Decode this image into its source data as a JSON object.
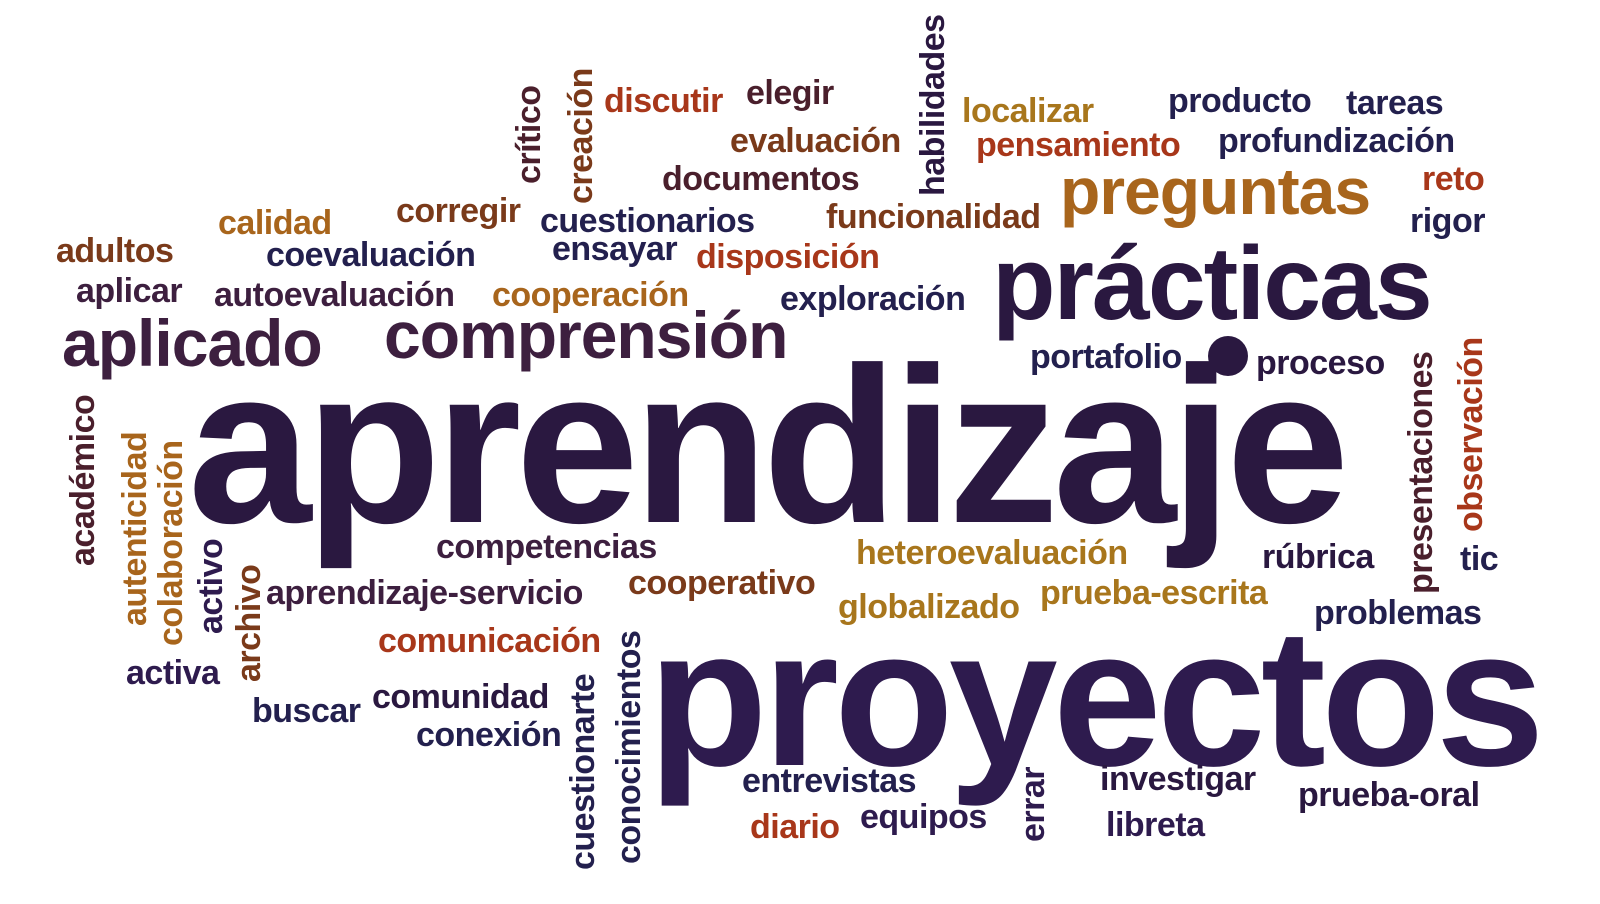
{
  "colors": {
    "dark_purple": "#2a1840",
    "deep_purple": "#2e1b4e",
    "navy": "#23204e",
    "maroon": "#4a1f2c",
    "plum": "#3d1f3f",
    "rust": "#a8371a",
    "brown": "#7a3a1a",
    "amber": "#a8651c",
    "gold": "#a8761c"
  },
  "words": {
    "aprendizaje": "aprendizaje",
    "proyectos": "proyectos",
    "practicas": "prácticas",
    "preguntas": "preguntas",
    "comprension": "comprensión",
    "aplicado": "aplicado",
    "discutir": "discutir",
    "elegir": "elegir",
    "localizar": "localizar",
    "producto": "producto",
    "tareas": "tareas",
    "evaluacion": "evaluación",
    "pensamiento": "pensamiento",
    "profundizacion": "profundización",
    "documentos": "documentos",
    "reto": "reto",
    "calidad": "calidad",
    "corregir": "corregir",
    "cuestionarios": "cuestionarios",
    "funcionalidad": "funcionalidad",
    "rigor": "rigor",
    "adultos": "adultos",
    "coevaluacion": "coevaluación",
    "ensayar": "ensayar",
    "disposicion": "disposición",
    "aplicar": "aplicar",
    "autoevaluacion": "autoevaluación",
    "cooperacion": "cooperación",
    "exploracion": "exploración",
    "portafolio": "portafolio",
    "proceso": "proceso",
    "competencias": "competencias",
    "heteroevaluacion": "heteroevaluación",
    "rubrica": "rúbrica",
    "tic": "tic",
    "aprendizaje_servicio": "aprendizaje-servicio",
    "cooperativo": "cooperativo",
    "globalizado": "globalizado",
    "prueba_escrita": "prueba-escrita",
    "problemas": "problemas",
    "comunicacion": "comunicación",
    "activa": "activa",
    "buscar": "buscar",
    "comunidad": "comunidad",
    "conexion": "conexión",
    "entrevistas": "entrevistas",
    "investigar": "investigar",
    "prueba_oral": "prueba-oral",
    "diario": "diario",
    "equipos": "equipos",
    "libreta": "libreta",
    "critico": "crítico",
    "creacion": "creación",
    "habilidades": "habilidades",
    "academico": "académico",
    "autenticidad": "autenticidad",
    "colaboracion": "colaboración",
    "activo": "activo",
    "archivo": "archivo",
    "cuestionarte": "cuestionarte",
    "conocimientos": "conocimientos",
    "errar": "errar",
    "presentaciones": "presentaciones",
    "observacion": "observación"
  }
}
